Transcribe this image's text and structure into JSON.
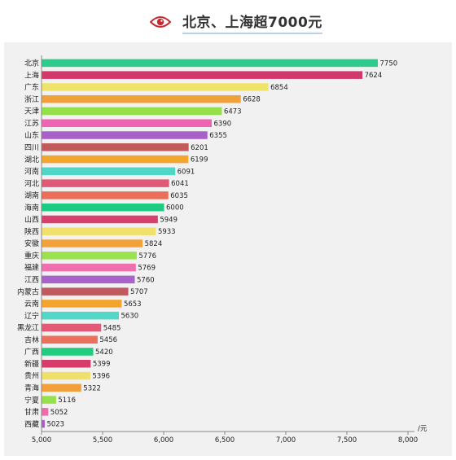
{
  "header": {
    "title": "北京、上海超7000元",
    "icon": "eye-icon",
    "icon_color": "#c8282e"
  },
  "chart_data": {
    "type": "bar",
    "orientation": "horizontal",
    "title": "北京、上海超7000元",
    "xlabel": "元",
    "ylabel": "",
    "xlim": [
      5000,
      8000
    ],
    "xticks": [
      5000,
      5500,
      6000,
      6500,
      7000,
      7500,
      8000
    ],
    "xtick_labels": [
      "5,000",
      "5,500",
      "6,000",
      "6,500",
      "7,000",
      "7,500",
      "8,000"
    ],
    "grid": false,
    "categories": [
      "北京",
      "上海",
      "广东",
      "浙江",
      "天津",
      "江苏",
      "山东",
      "四川",
      "湖北",
      "河南",
      "河北",
      "湖南",
      "海南",
      "山西",
      "陕西",
      "安徽",
      "重庆",
      "福建",
      "江西",
      "内蒙古",
      "云南",
      "辽宁",
      "黑龙江",
      "吉林",
      "广西",
      "新疆",
      "贵州",
      "青海",
      "宁夏",
      "甘肃",
      "西藏"
    ],
    "values": [
      7750,
      7624,
      6854,
      6628,
      6473,
      6390,
      6355,
      6201,
      6199,
      6091,
      6041,
      6035,
      6000,
      5949,
      5933,
      5824,
      5776,
      5769,
      5760,
      5707,
      5653,
      5630,
      5485,
      5456,
      5420,
      5399,
      5396,
      5322,
      5116,
      5052,
      5023
    ],
    "colors": [
      "#2dcc8c",
      "#d2386a",
      "#f0e36a",
      "#f0a13a",
      "#93e04a",
      "#ee64b2",
      "#a760c8",
      "#c15a5a",
      "#f3a62d",
      "#4fd6c6",
      "#e05a78",
      "#ea6e5a",
      "#1ecb82",
      "#d93f6c",
      "#f0e06e",
      "#f2a23a",
      "#9ae24e",
      "#ee70ae",
      "#a962ca",
      "#c05a5e",
      "#f2a42e",
      "#53d8c8",
      "#e25a78",
      "#ea705c",
      "#20cc7e",
      "#d63c6a",
      "#f0e06a",
      "#f2a03a",
      "#96e04c",
      "#ee6cac",
      "#a860c8"
    ]
  }
}
